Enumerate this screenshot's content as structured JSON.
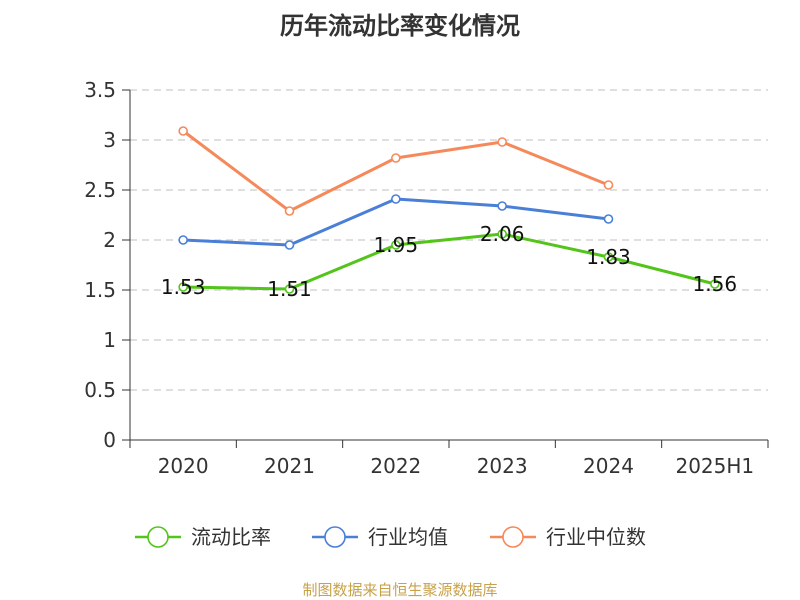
{
  "chart_data": {
    "type": "line",
    "title": "历年流动比率变化情况",
    "categories": [
      "2020",
      "2021",
      "2022",
      "2023",
      "2024",
      "2025H1"
    ],
    "ylim": [
      0,
      3.5
    ],
    "yticks": [
      "0",
      "0.5",
      "1",
      "1.5",
      "2",
      "2.5",
      "3",
      "3.5"
    ],
    "grid": true,
    "legend_position": "bottom",
    "series": [
      {
        "name": "流动比率",
        "color": "#52c41a",
        "show_labels": true,
        "values": [
          1.53,
          1.51,
          1.95,
          2.06,
          1.83,
          1.56
        ],
        "labels": [
          "1.53",
          "1.51",
          "1.95",
          "2.06",
          "1.83",
          "1.56"
        ]
      },
      {
        "name": "行业均值",
        "color": "#4a7fd8",
        "show_labels": false,
        "values": [
          2.0,
          1.95,
          2.41,
          2.34,
          2.21,
          null
        ]
      },
      {
        "name": "行业中位数",
        "color": "#f5895a",
        "show_labels": false,
        "values": [
          3.09,
          2.29,
          2.82,
          2.98,
          2.55,
          null
        ]
      }
    ]
  },
  "footer": {
    "source": "制图数据来自恒生聚源数据库"
  }
}
